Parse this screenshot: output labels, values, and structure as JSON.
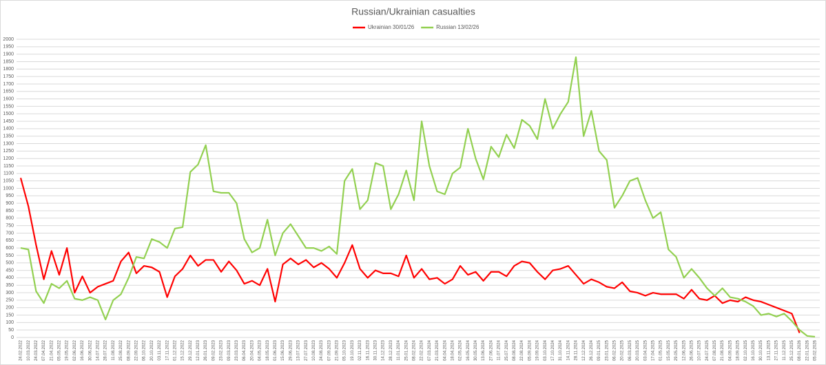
{
  "chart_data": {
    "type": "line",
    "title": "Russian/Ukrainian casualties",
    "categories": [
      "24.02.2022",
      "10.03.2022",
      "24.03.2022",
      "07.04.2022",
      "21.04.2022",
      "05.05.2022",
      "19.05.2022",
      "02.06.2022",
      "16.06.2022",
      "30.06.2022",
      "14.07.2022",
      "28.07.2022",
      "11.08.2022",
      "25.08.2022",
      "08.09.2022",
      "22.09.2022",
      "06.10.2022",
      "20.10.2022",
      "03.11.2022",
      "17.11.2022",
      "01.12.2022",
      "15.12.2022",
      "29.12.2022",
      "12.01.2023",
      "26.01.2023",
      "09.02.2023",
      "23.02.2023",
      "09.03.2023",
      "23.03.2023",
      "06.04.2023",
      "20.04.2023",
      "04.05.2023",
      "18.05.2023",
      "01.06.2023",
      "15.06.2023",
      "29.06.2023",
      "13.07.2023",
      "27.07.2023",
      "10.08.2023",
      "24.08.2023",
      "07.09.2023",
      "21.09.2023",
      "05.10.2023",
      "19.10.2023",
      "02.11.2023",
      "16.11.2023",
      "30.11.2023",
      "14.12.2023",
      "28.12.2023",
      "11.01.2024",
      "25.01.2024",
      "08.02.2024",
      "22.02.2024",
      "07.03.2024",
      "21.03.2024",
      "04.04.2024",
      "18.04.2024",
      "02.05.2024",
      "16.05.2024",
      "30.05.2024",
      "13.06.2024",
      "27.06.2024",
      "11.07.2024",
      "25.07.2024",
      "08.08.2024",
      "22.08.2024",
      "05.09.2024",
      "19.09.2024",
      "03.10.2024",
      "17.10.2024",
      "31.10.2024",
      "14.11.2024",
      "28.11.2024",
      "12.12.2024",
      "26.12.2024",
      "09.01.2025",
      "23.01.2025",
      "06.02.2025",
      "20.02.2025",
      "06.03.2025",
      "20.03.2025",
      "03.04.2025",
      "17.04.2025",
      "01.05.2025",
      "15.05.2025",
      "29.05.2025",
      "12.06.2025",
      "26.06.2025",
      "10.07.2025",
      "24.07.2025",
      "07.08.2025",
      "21.08.2025",
      "04.09.2025",
      "18.09.2025",
      "02.10.2025",
      "16.10.2025",
      "30.10.2025",
      "13.11.2025",
      "27.11.2025",
      "11.12.2025",
      "25.12.2025",
      "08.01.2026",
      "22.01.2026",
      "05.02.2026"
    ],
    "series": [
      {
        "name": "Ukrainian 30/01/26",
        "color": "#ff0000",
        "values": [
          1070,
          880,
          620,
          390,
          580,
          420,
          600,
          300,
          410,
          300,
          340,
          360,
          380,
          510,
          570,
          430,
          480,
          470,
          440,
          270,
          410,
          460,
          550,
          480,
          520,
          520,
          440,
          510,
          450,
          360,
          380,
          350,
          460,
          240,
          490,
          530,
          490,
          520,
          470,
          500,
          460,
          400,
          500,
          620,
          460,
          400,
          450,
          430,
          430,
          410,
          550,
          400,
          460,
          390,
          400,
          360,
          390,
          480,
          420,
          440,
          380,
          440,
          440,
          410,
          480,
          510,
          500,
          440,
          390,
          450,
          460,
          480,
          420,
          360,
          390,
          370,
          340,
          330,
          370,
          310,
          300,
          280,
          300,
          290,
          290,
          290,
          260,
          320,
          260,
          250,
          280,
          230,
          250,
          240,
          270,
          250,
          240,
          220,
          200,
          180,
          160,
          30,
          null,
          null
        ]
      },
      {
        "name": "Russian 13/02/26",
        "color": "#92d050",
        "values": [
          600,
          590,
          310,
          230,
          360,
          330,
          380,
          260,
          250,
          270,
          250,
          120,
          250,
          290,
          400,
          540,
          530,
          660,
          640,
          600,
          730,
          740,
          1110,
          1160,
          1290,
          980,
          970,
          970,
          900,
          660,
          570,
          600,
          790,
          550,
          700,
          760,
          680,
          600,
          600,
          580,
          610,
          560,
          1050,
          1130,
          860,
          920,
          1170,
          1150,
          860,
          960,
          1120,
          920,
          1450,
          1150,
          980,
          960,
          1100,
          1140,
          1400,
          1200,
          1060,
          1280,
          1210,
          1360,
          1270,
          1460,
          1420,
          1330,
          1600,
          1400,
          1500,
          1580,
          1880,
          1350,
          1520,
          1250,
          1190,
          870,
          950,
          1050,
          1070,
          920,
          800,
          840,
          590,
          540,
          400,
          460,
          400,
          330,
          280,
          330,
          270,
          260,
          240,
          210,
          150,
          160,
          140,
          160,
          110,
          50,
          10,
          5
        ]
      }
    ],
    "ylim": [
      0,
      2000
    ],
    "yticks": [
      0,
      50,
      100,
      150,
      200,
      250,
      300,
      350,
      400,
      450,
      500,
      550,
      600,
      650,
      700,
      750,
      800,
      850,
      900,
      950,
      1000,
      1050,
      1100,
      1150,
      1200,
      1250,
      1300,
      1350,
      1400,
      1450,
      1500,
      1550,
      1600,
      1650,
      1700,
      1750,
      1800,
      1850,
      1900,
      1950,
      2000
    ],
    "grid": true,
    "legend": "top"
  }
}
